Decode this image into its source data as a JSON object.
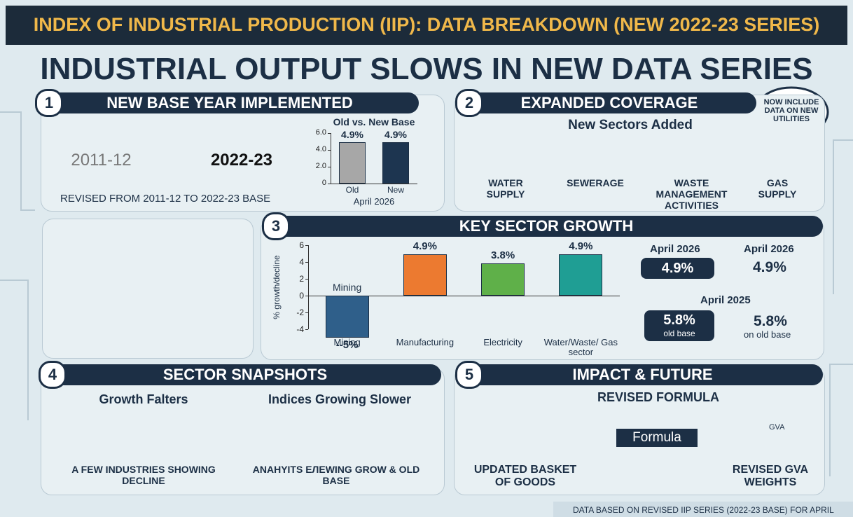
{
  "header": {
    "title": "INDEX OF INDUSTRIAL PRODUCTION (IIP): DATA BREAKDOWN (NEW 2022-23 SERIES)",
    "headline": "INDUSTRIAL OUTPUT SLOWS IN NEW DATA SERIES"
  },
  "sections": [
    {
      "number": "1",
      "title": "NEW BASE YEAR IMPLEMENTED",
      "old_base": "2011-12",
      "new_base": "2022-23",
      "caption": "REVISED FROM 2011-12 TO 2022-23 BASE"
    },
    {
      "number": "2",
      "title": "EXPANDED COVERAGE",
      "callout": "NOW INCLUDE DATA ON NEW UTILITIES",
      "subtitle": "New Sectors Added",
      "items": [
        "WATER SUPPLY",
        "SEWERAGE",
        "WASTE MANAGEMENT ACTIVITIES",
        "GAS SUPPLY"
      ]
    },
    {
      "number": "3",
      "title": "KEY SECTOR GROWTH",
      "comparison": {
        "new_period": "April 2026",
        "new_value": "4.9%",
        "new_period_result": "April 2026",
        "new_result": "4.9%",
        "old_period": "April 2025",
        "old_value": "5.8%",
        "old_note": "old base",
        "old_result": "5.8%",
        "old_result_note": "on old base"
      }
    },
    {
      "number": "4",
      "title": "SECTOR SNAPSHOTS",
      "panels": [
        {
          "title": "Growth Falters",
          "caption": "A FEW INDUSTRIES SHOWING DECLINE"
        },
        {
          "title": "Indices Growing Slower",
          "caption": "ANAHYITS ЕЛEWING GROW & OLD BASE"
        }
      ]
    },
    {
      "number": "5",
      "title": "IMPACT & FUTURE",
      "subtitle": "REVISED FORMULA",
      "steps": [
        "UPDATED BASKET OF GOODS",
        "Formula",
        "REVISED GVA WEIGHTS"
      ],
      "icon_label": "GVA"
    }
  ],
  "footer": "DATA BASED ON REVISED IIP SERIES (2022-23 BASE) FOR APRIL",
  "chart_data": [
    {
      "type": "bar",
      "title": "Old vs. New Base",
      "categories": [
        "Old",
        "New"
      ],
      "values": [
        4.9,
        4.9
      ],
      "value_labels": [
        "4.9%",
        "4.9%"
      ],
      "xlabel": "April 2026",
      "colors": [
        "#a7a7a7",
        "#1d3550"
      ],
      "ylim": [
        0,
        6
      ],
      "yticks": [
        0,
        {
          "value": 2,
          "label": "2.0"
        },
        {
          "value": 4,
          "label": "4.0"
        },
        {
          "value": 6,
          "label": "6.0"
        }
      ]
    },
    {
      "type": "bar",
      "categories": [
        "Mining",
        "Manufacturing",
        "Electricity",
        "Water/Waste/ Gas sector"
      ],
      "values": [
        -5,
        4.9,
        3.8,
        4.9
      ],
      "value_labels": [
        "--5%",
        "4.9%",
        "3.8%",
        "4.9%"
      ],
      "colors": [
        "#2f5f8a",
        "#ec7a30",
        "#5fb049",
        "#1f9e94"
      ],
      "annotation": "Mining",
      "ylabel": "% growth/decline",
      "ylim": [
        -4,
        6
      ],
      "yticks": [
        -4,
        -2,
        0,
        2,
        4,
        6
      ]
    }
  ]
}
